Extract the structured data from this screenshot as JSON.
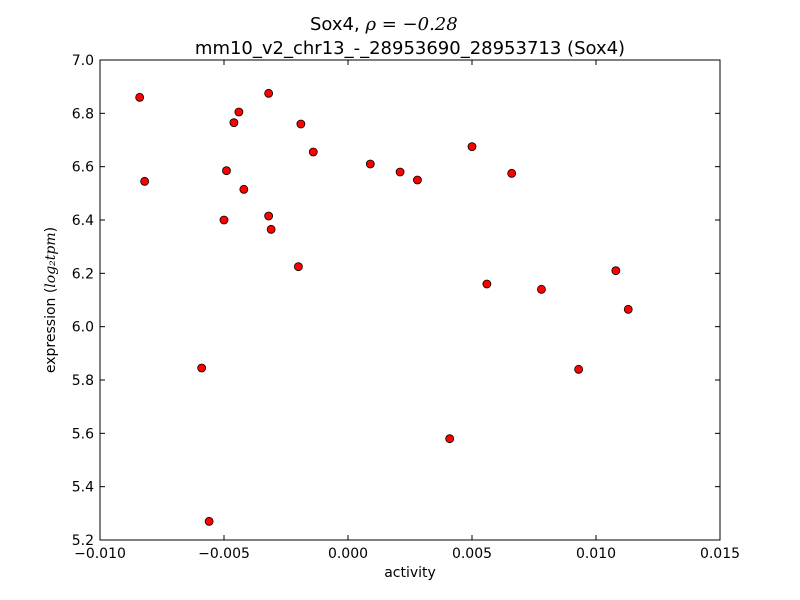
{
  "chart_data": {
    "type": "scatter",
    "title_gene": "Sox4, ",
    "title_rho": "ρ = −0.28",
    "subtitle": "mm10_v2_chr13_-_28953690_28953713 (Sox4)",
    "xlabel": "activity",
    "ylabel_prefix": "expression (",
    "ylabel_math": "log₂tpm",
    "ylabel_suffix": ")",
    "xlim": [
      -0.01,
      0.015
    ],
    "ylim": [
      5.2,
      7.0
    ],
    "xticks": [
      -0.01,
      -0.005,
      0.0,
      0.005,
      0.01,
      0.015
    ],
    "xtick_labels": [
      "−0.010",
      "−0.005",
      "0.000",
      "0.005",
      "0.010",
      "0.015"
    ],
    "yticks": [
      5.2,
      5.4,
      5.6,
      5.8,
      6.0,
      6.2,
      6.4,
      6.6,
      6.8,
      7.0
    ],
    "ytick_labels": [
      "5.2",
      "5.4",
      "5.6",
      "5.8",
      "6.0",
      "6.2",
      "6.4",
      "6.6",
      "6.8",
      "7.0"
    ],
    "marker_color": "#ff0000",
    "marker_edge": "#000000",
    "points": [
      {
        "x": -0.0084,
        "y": 6.86
      },
      {
        "x": -0.0082,
        "y": 6.545
      },
      {
        "x": -0.0059,
        "y": 5.845
      },
      {
        "x": -0.0056,
        "y": 5.27
      },
      {
        "x": -0.005,
        "y": 6.4
      },
      {
        "x": -0.0049,
        "y": 6.585
      },
      {
        "x": -0.0046,
        "y": 6.765
      },
      {
        "x": -0.0044,
        "y": 6.805
      },
      {
        "x": -0.0042,
        "y": 6.515
      },
      {
        "x": -0.0032,
        "y": 6.875
      },
      {
        "x": -0.0032,
        "y": 6.415
      },
      {
        "x": -0.0031,
        "y": 6.365
      },
      {
        "x": -0.002,
        "y": 6.225
      },
      {
        "x": -0.0019,
        "y": 6.76
      },
      {
        "x": -0.0014,
        "y": 6.655
      },
      {
        "x": 0.0009,
        "y": 6.61
      },
      {
        "x": 0.0021,
        "y": 6.58
      },
      {
        "x": 0.0028,
        "y": 6.55
      },
      {
        "x": 0.0041,
        "y": 5.58
      },
      {
        "x": 0.005,
        "y": 6.675
      },
      {
        "x": 0.0056,
        "y": 6.16
      },
      {
        "x": 0.0066,
        "y": 6.575
      },
      {
        "x": 0.0078,
        "y": 6.14
      },
      {
        "x": 0.0093,
        "y": 5.84
      },
      {
        "x": 0.0108,
        "y": 6.21
      },
      {
        "x": 0.0113,
        "y": 6.065
      }
    ]
  }
}
